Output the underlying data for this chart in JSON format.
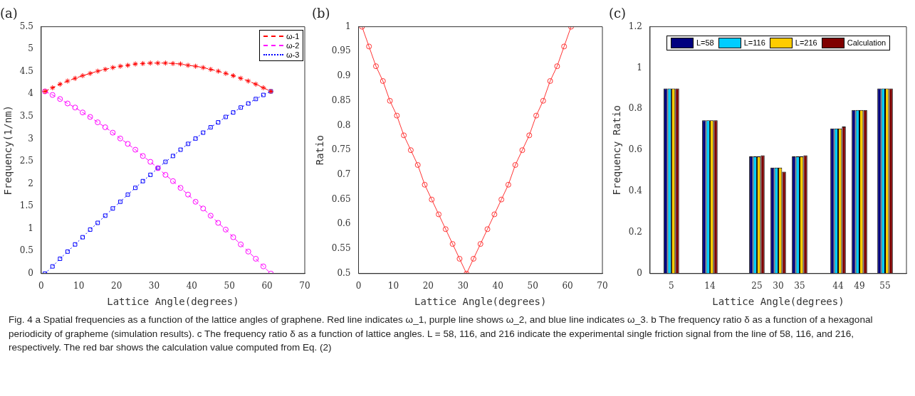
{
  "chart_data": [
    {
      "type": "line",
      "title": "(a)",
      "xlabel": "Lattice Angle(degrees)",
      "ylabel": "Frequency(1/nm)",
      "x": [
        1,
        3,
        5,
        7,
        9,
        11,
        13,
        15,
        17,
        19,
        21,
        23,
        25,
        27,
        29,
        31,
        33,
        35,
        37,
        39,
        41,
        43,
        45,
        47,
        49,
        51,
        53,
        55,
        57,
        59,
        61
      ],
      "xlim": [
        0,
        70
      ],
      "xticks": [
        0,
        10,
        20,
        30,
        40,
        50,
        60,
        70
      ],
      "ylim": [
        0,
        5.5
      ],
      "yticks": [
        0,
        0.5,
        1,
        1.5,
        2,
        2.5,
        3,
        3.5,
        4,
        4.5,
        5,
        5.5
      ],
      "legend": "top right",
      "series": [
        {
          "name": "ω-1",
          "color": "#ff0000",
          "marker": "cross",
          "line_style": "dashed",
          "values": [
            4.06,
            4.14,
            4.22,
            4.29,
            4.35,
            4.41,
            4.46,
            4.51,
            4.55,
            4.59,
            4.62,
            4.64,
            4.67,
            4.68,
            4.69,
            4.69,
            4.69,
            4.68,
            4.67,
            4.64,
            4.62,
            4.59,
            4.55,
            4.51,
            4.46,
            4.41,
            4.35,
            4.29,
            4.22,
            4.14,
            4.06
          ]
        },
        {
          "name": "ω-2",
          "color": "#ff00ff",
          "marker": "circle",
          "line_style": "dashed",
          "values": [
            4.06,
            3.98,
            3.89,
            3.79,
            3.7,
            3.59,
            3.49,
            3.37,
            3.26,
            3.14,
            3.01,
            2.89,
            2.76,
            2.62,
            2.49,
            2.35,
            2.2,
            2.06,
            1.91,
            1.76,
            1.6,
            1.45,
            1.29,
            1.13,
            0.98,
            0.81,
            0.65,
            0.49,
            0.33,
            0.16,
            0
          ]
        },
        {
          "name": "ω-3",
          "color": "#0000ff",
          "marker": "square",
          "line_style": "dotted",
          "values": [
            0,
            0.16,
            0.33,
            0.49,
            0.65,
            0.81,
            0.98,
            1.13,
            1.29,
            1.45,
            1.6,
            1.76,
            1.91,
            2.06,
            2.2,
            2.35,
            2.49,
            2.62,
            2.76,
            2.89,
            3.01,
            3.14,
            3.26,
            3.37,
            3.49,
            3.59,
            3.7,
            3.79,
            3.89,
            3.98,
            4.06
          ]
        }
      ]
    },
    {
      "type": "line",
      "title": "(b)",
      "xlabel": "Lattice Angle(degrees)",
      "ylabel": "Ratio",
      "x": [
        1,
        3,
        5,
        7,
        9,
        11,
        13,
        15,
        17,
        19,
        21,
        23,
        25,
        27,
        29,
        31,
        33,
        35,
        37,
        39,
        41,
        43,
        45,
        47,
        49,
        51,
        53,
        55,
        57,
        59,
        61
      ],
      "xlim": [
        0,
        70
      ],
      "xticks": [
        0,
        10,
        20,
        30,
        40,
        50,
        60,
        70
      ],
      "ylim": [
        0.5,
        1
      ],
      "yticks": [
        0.5,
        0.55,
        0.6,
        0.65,
        0.7,
        0.75,
        0.8,
        0.85,
        0.9,
        0.95,
        1
      ],
      "series": [
        {
          "color": "#ff3333",
          "marker": "circle",
          "line_style": "solid",
          "values": [
            1,
            0.96,
            0.92,
            0.89,
            0.85,
            0.82,
            0.78,
            0.75,
            0.72,
            0.68,
            0.65,
            0.62,
            0.59,
            0.56,
            0.53,
            0.5,
            0.53,
            0.56,
            0.59,
            0.62,
            0.65,
            0.68,
            0.72,
            0.75,
            0.78,
            0.82,
            0.85,
            0.89,
            0.92,
            0.96,
            1
          ]
        }
      ]
    },
    {
      "type": "bar",
      "title": "(c)",
      "xlabel": "Lattice Angle(degrees)",
      "ylabel": "Frequency Ratio",
      "x": [
        5,
        14,
        25,
        30,
        35,
        44,
        49,
        55
      ],
      "xlim": [
        0,
        60
      ],
      "xticks": [
        5,
        14,
        25,
        30,
        35,
        44,
        49,
        55
      ],
      "ylim": [
        0,
        1.2
      ],
      "yticks": [
        0,
        0.2,
        0.4,
        0.6,
        0.8,
        1,
        1.2
      ],
      "legend": "top",
      "series": [
        {
          "name": "L=58",
          "color": "#00007f",
          "values": [
            0.9,
            0.745,
            0.57,
            0.515,
            0.57,
            0.705,
            0.795,
            0.9
          ]
        },
        {
          "name": "L=116",
          "color": "#00ccff",
          "values": [
            0.9,
            0.745,
            0.57,
            0.515,
            0.57,
            0.705,
            0.795,
            0.9
          ]
        },
        {
          "name": "L=216",
          "color": "#ffcc00",
          "values": [
            0.9,
            0.745,
            0.57,
            0.515,
            0.57,
            0.705,
            0.795,
            0.9
          ]
        },
        {
          "name": "Calculation",
          "color": "#7f0000",
          "values": [
            0.9,
            0.745,
            0.575,
            0.495,
            0.575,
            0.715,
            0.795,
            0.9
          ]
        }
      ],
      "annotations": [
        "Fig. 4 a Spatial frequencies as a function of the lattice angles of graphene. Red line indicates ω_1, purple line shows ω_2, and blue line indicates ω_3. b The frequency ratio δ as a function of a hexagonal periodicity of grapheme (simulation results). c The frequency ratio δ as a function of lattice angles. L = 58, 116, and 216 indicate the experimental single friction signal from the line of 58, 116, and 216, respectively. The red bar shows the calculation value computed from Eq. (2)"
      ]
    }
  ]
}
